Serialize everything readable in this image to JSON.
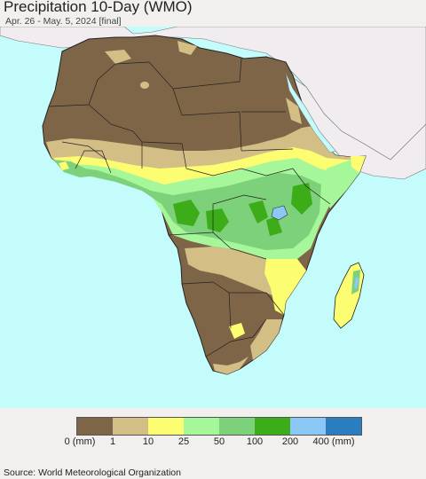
{
  "header": {
    "title": "Precipitation 10-Day (WMO)",
    "subtitle": "Apr. 26 - May. 5, 2024 [final]"
  },
  "legend": {
    "colors": [
      "#7f6547",
      "#d3bf86",
      "#fdfd72",
      "#a6f79a",
      "#7dd17a",
      "#3cad18",
      "#8cc8f5",
      "#2a7ec0"
    ],
    "labels": [
      "0 (mm)",
      "1",
      "10",
      "25",
      "50",
      "100",
      "200",
      "400 (mm)"
    ]
  },
  "map": {
    "ocean_color": "#c4fbfb",
    "land_outside_color": "#f0ecef"
  },
  "footer": {
    "source": "Source: World Meteorological Organization"
  }
}
